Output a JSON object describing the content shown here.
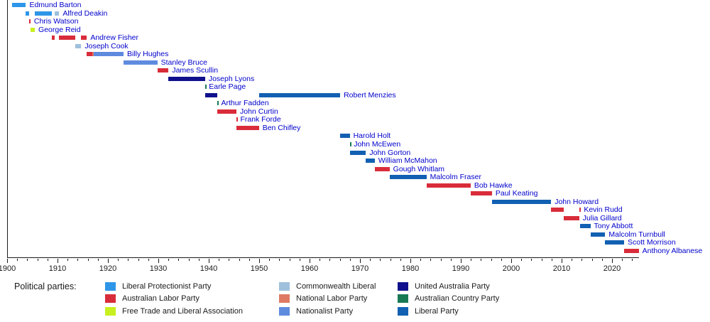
{
  "chart_data": {
    "type": "bar",
    "variant": "timeline-gantt",
    "axis": {
      "min": 1900,
      "max": 2025.4,
      "minor_tick_years": 2,
      "major_tick_years": 10,
      "tick_labels": [
        1900,
        1910,
        1920,
        1930,
        1940,
        1950,
        1960,
        1970,
        1980,
        1990,
        2000,
        2010,
        2020
      ]
    },
    "parties": {
      "protectionist": {
        "label": "Liberal Protectionist Party",
        "color": "#2e96e8"
      },
      "labor": {
        "label": "Australian Labor Party",
        "color": "#d92c3a"
      },
      "freetrade": {
        "label": "Free Trade and Liberal Association",
        "color": "#c8f01e"
      },
      "commonwealth": {
        "label": "Commonwealth Liberal",
        "color": "#9ec0dc"
      },
      "national_labor": {
        "label": "National Labor Party",
        "color": "#de7a64"
      },
      "nationalist": {
        "label": "Nationalist Party",
        "color": "#5f8bdf"
      },
      "uap": {
        "label": "United Australia Party",
        "color": "#10108c"
      },
      "country": {
        "label": "Australian Country Party",
        "color": "#187a55"
      },
      "liberal": {
        "label": "Liberal Party",
        "color": "#1160b2"
      }
    },
    "prime_ministers": [
      {
        "name": "Edmund Barton",
        "terms": [
          {
            "start": 1901.0,
            "end": 1903.73,
            "party": "protectionist"
          }
        ]
      },
      {
        "name": "Alfred Deakin",
        "terms": [
          {
            "start": 1903.73,
            "end": 1904.32,
            "party": "protectionist"
          },
          {
            "start": 1905.5,
            "end": 1908.87,
            "party": "protectionist"
          },
          {
            "start": 1909.44,
            "end": 1910.33,
            "party": "commonwealth"
          }
        ]
      },
      {
        "name": "Chris Watson",
        "terms": [
          {
            "start": 1904.32,
            "end": 1904.63,
            "party": "labor"
          }
        ]
      },
      {
        "name": "George Reid",
        "terms": [
          {
            "start": 1904.63,
            "end": 1905.5,
            "party": "freetrade"
          }
        ]
      },
      {
        "name": "Andrew Fisher",
        "terms": [
          {
            "start": 1908.87,
            "end": 1909.44,
            "party": "labor"
          },
          {
            "start": 1910.33,
            "end": 1913.48,
            "party": "labor"
          },
          {
            "start": 1914.7,
            "end": 1915.82,
            "party": "labor"
          }
        ]
      },
      {
        "name": "Joseph Cook",
        "terms": [
          {
            "start": 1913.48,
            "end": 1914.7,
            "party": "commonwealth"
          }
        ]
      },
      {
        "name": "Billy Hughes",
        "terms": [
          {
            "start": 1915.82,
            "end": 1916.88,
            "party": "labor"
          },
          {
            "start": 1916.88,
            "end": 1917.15,
            "party": "national_labor"
          },
          {
            "start": 1917.15,
            "end": 1923.1,
            "party": "nationalist"
          }
        ]
      },
      {
        "name": "Stanley Bruce",
        "terms": [
          {
            "start": 1923.1,
            "end": 1929.8,
            "party": "nationalist"
          }
        ]
      },
      {
        "name": "James Scullin",
        "terms": [
          {
            "start": 1929.8,
            "end": 1932.02,
            "party": "labor"
          }
        ]
      },
      {
        "name": "Joseph Lyons",
        "terms": [
          {
            "start": 1932.02,
            "end": 1939.27,
            "party": "uap"
          }
        ]
      },
      {
        "name": "Earle Page",
        "terms": [
          {
            "start": 1939.27,
            "end": 1939.33,
            "party": "country"
          }
        ]
      },
      {
        "name": "Robert Menzies",
        "terms": [
          {
            "start": 1939.33,
            "end": 1941.65,
            "party": "uap"
          },
          {
            "start": 1949.96,
            "end": 1966.07,
            "party": "liberal"
          }
        ]
      },
      {
        "name": "Arthur Fadden",
        "terms": [
          {
            "start": 1941.65,
            "end": 1941.76,
            "party": "country"
          }
        ]
      },
      {
        "name": "John Curtin",
        "terms": [
          {
            "start": 1941.76,
            "end": 1945.5,
            "party": "labor"
          }
        ]
      },
      {
        "name": "Frank Forde",
        "terms": [
          {
            "start": 1945.5,
            "end": 1945.56,
            "party": "labor"
          }
        ]
      },
      {
        "name": "Ben Chifley",
        "terms": [
          {
            "start": 1945.56,
            "end": 1949.96,
            "party": "labor"
          }
        ]
      },
      {
        "name": "Harold Holt",
        "terms": [
          {
            "start": 1966.07,
            "end": 1967.97,
            "party": "liberal"
          }
        ]
      },
      {
        "name": "John McEwen",
        "terms": [
          {
            "start": 1967.97,
            "end": 1968.06,
            "party": "country"
          }
        ]
      },
      {
        "name": "John Gorton",
        "terms": [
          {
            "start": 1968.06,
            "end": 1971.18,
            "party": "liberal"
          }
        ]
      },
      {
        "name": "William McMahon",
        "terms": [
          {
            "start": 1971.18,
            "end": 1972.93,
            "party": "liberal"
          }
        ]
      },
      {
        "name": "Gough Whitlam",
        "terms": [
          {
            "start": 1972.93,
            "end": 1975.87,
            "party": "labor"
          }
        ]
      },
      {
        "name": "Malcolm Fraser",
        "terms": [
          {
            "start": 1975.87,
            "end": 1983.19,
            "party": "liberal"
          }
        ]
      },
      {
        "name": "Bob Hawke",
        "terms": [
          {
            "start": 1983.19,
            "end": 1991.96,
            "party": "labor"
          }
        ]
      },
      {
        "name": "Paul Keating",
        "terms": [
          {
            "start": 1991.96,
            "end": 1996.18,
            "party": "labor"
          }
        ]
      },
      {
        "name": "John Howard",
        "terms": [
          {
            "start": 1996.18,
            "end": 2007.92,
            "party": "liberal"
          }
        ]
      },
      {
        "name": "Kevin Rudd",
        "terms": [
          {
            "start": 2007.92,
            "end": 2010.48,
            "party": "labor"
          },
          {
            "start": 2013.49,
            "end": 2013.71,
            "party": "labor"
          }
        ]
      },
      {
        "name": "Julia Gillard",
        "terms": [
          {
            "start": 2010.48,
            "end": 2013.49,
            "party": "labor"
          }
        ]
      },
      {
        "name": "Tony Abbott",
        "terms": [
          {
            "start": 2013.71,
            "end": 2015.71,
            "party": "liberal"
          }
        ]
      },
      {
        "name": "Malcolm Turnbull",
        "terms": [
          {
            "start": 2015.71,
            "end": 2018.65,
            "party": "liberal"
          }
        ]
      },
      {
        "name": "Scott Morrison",
        "terms": [
          {
            "start": 2018.65,
            "end": 2022.4,
            "party": "liberal"
          }
        ]
      },
      {
        "name": "Anthony Albanese",
        "terms": [
          {
            "start": 2022.4,
            "end": 2025.3,
            "party": "labor"
          }
        ]
      }
    ]
  },
  "legend": {
    "title": "Political parties:",
    "columns": [
      [
        "protectionist",
        "labor",
        "freetrade"
      ],
      [
        "commonwealth",
        "national_labor",
        "nationalist"
      ],
      [
        "uap",
        "country",
        "liberal"
      ]
    ]
  }
}
